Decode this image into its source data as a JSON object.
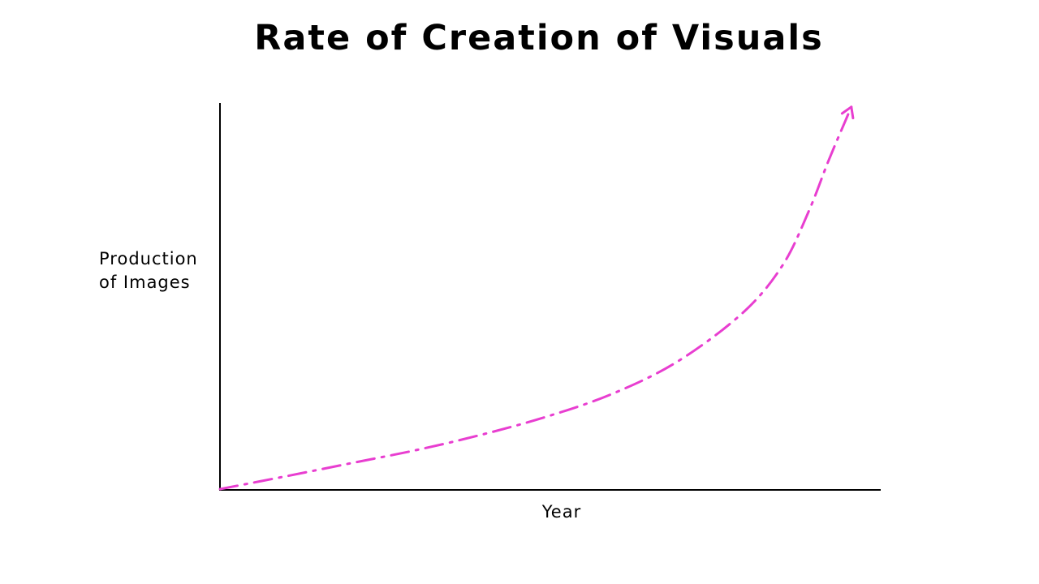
{
  "chart_data": {
    "type": "line",
    "title": "Rate of Creation of Visuals",
    "ylabel_lines": [
      "Production",
      "of Images"
    ],
    "xlabel": "Year",
    "grid": false,
    "axis_ticks": false,
    "series": [
      {
        "style": "dash-dot",
        "color": "#e83ed0",
        "arrow_end": true,
        "points": [
          [
            0.0,
            0.0
          ],
          [
            0.1,
            0.033
          ],
          [
            0.2,
            0.067
          ],
          [
            0.3,
            0.101
          ],
          [
            0.4,
            0.141
          ],
          [
            0.5,
            0.188
          ],
          [
            0.6,
            0.247
          ],
          [
            0.7,
            0.331
          ],
          [
            0.8,
            0.458
          ],
          [
            0.86,
            0.58
          ],
          [
            0.9,
            0.72
          ],
          [
            0.93,
            0.85
          ],
          [
            0.955,
            0.95
          ],
          [
            0.965,
            0.99
          ]
        ]
      }
    ],
    "xlim": [
      0,
      1
    ],
    "ylim": [
      0,
      1
    ]
  }
}
